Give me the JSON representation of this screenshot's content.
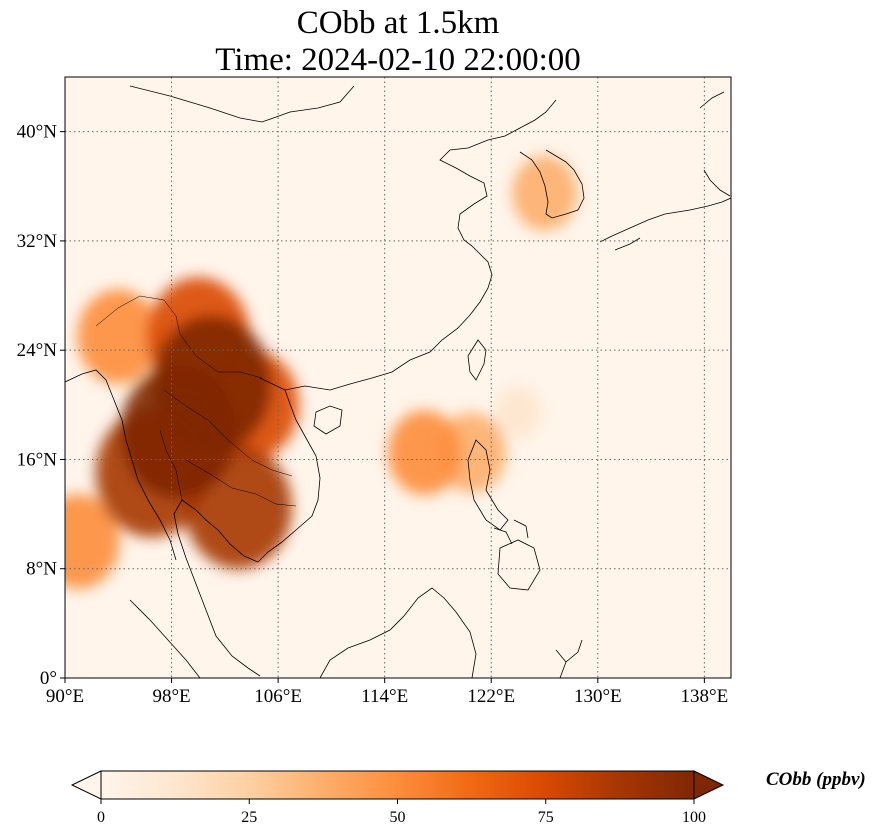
{
  "title": "CObb at 1.5km",
  "subtitle": "Time: 2024-02-10 22:00:00",
  "map": {
    "lon_range": [
      90,
      140
    ],
    "lat_range": [
      0,
      44
    ],
    "lon_ticks": [
      90,
      98,
      106,
      114,
      122,
      130,
      138
    ],
    "lon_tick_labels": [
      "90°E",
      "98°E",
      "106°E",
      "114°E",
      "122°E",
      "130°E",
      "138°E"
    ],
    "lat_ticks": [
      0,
      8,
      16,
      24,
      32,
      40
    ],
    "lat_tick_labels": [
      "0°",
      "8°N",
      "16°N",
      "24°N",
      "32°N",
      "40°N"
    ],
    "gridlines": "dotted",
    "colormap": "OrRd",
    "background_color": "#fff5eb",
    "coastline_color": "#000000"
  },
  "colorbar": {
    "label": "CObb (ppbv)",
    "range": [
      0,
      100
    ],
    "ticks": [
      0,
      25,
      50,
      75,
      100
    ],
    "tick_labels": [
      "0",
      "25",
      "50",
      "75",
      "100"
    ],
    "extend": "both",
    "colors": [
      "#fff5eb",
      "#fee6ce",
      "#fdd0a2",
      "#fdae6b",
      "#fd8d3c",
      "#f16913",
      "#d94801",
      "#a63603",
      "#7f2704"
    ]
  },
  "plumes": [
    {
      "lon": 101,
      "lat": 21.5,
      "value": 100
    },
    {
      "lon": 98.5,
      "lat": 18,
      "value": 95
    },
    {
      "lon": 96.5,
      "lat": 15,
      "value": 90
    },
    {
      "lon": 103,
      "lat": 12.5,
      "value": 85
    },
    {
      "lon": 100,
      "lat": 25,
      "value": 80
    },
    {
      "lon": 104,
      "lat": 20,
      "value": 70
    },
    {
      "lon": 94,
      "lat": 25,
      "value": 55
    },
    {
      "lon": 91,
      "lat": 10,
      "value": 55
    },
    {
      "lon": 117,
      "lat": 16.5,
      "value": 45
    },
    {
      "lon": 120.5,
      "lat": 16.5,
      "value": 40
    },
    {
      "lon": 126,
      "lat": 35.5,
      "value": 35
    },
    {
      "lon": 124,
      "lat": 19.5,
      "value": 12
    }
  ]
}
